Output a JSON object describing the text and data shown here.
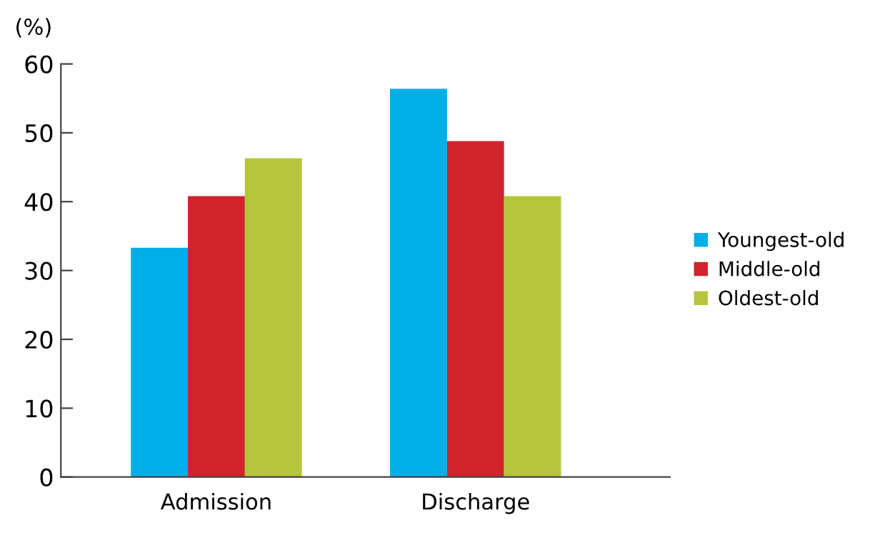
{
  "chart_data": {
    "type": "bar",
    "ylabel": "(%)",
    "categories": [
      "Admission",
      "Discharge"
    ],
    "series": [
      {
        "name": "Youngest-old",
        "color": "#00aee8",
        "values": [
          33.3,
          56.4
        ]
      },
      {
        "name": "Middle-old",
        "color": "#d0232b",
        "values": [
          40.8,
          48.8
        ]
      },
      {
        "name": "Oldest-old",
        "color": "#b5c53b",
        "values": [
          46.3,
          40.8
        ]
      }
    ],
    "ylim": [
      0,
      60
    ],
    "yticks": [
      0,
      10,
      20,
      30,
      40,
      50,
      60
    ],
    "grid": false,
    "legend": "right"
  }
}
